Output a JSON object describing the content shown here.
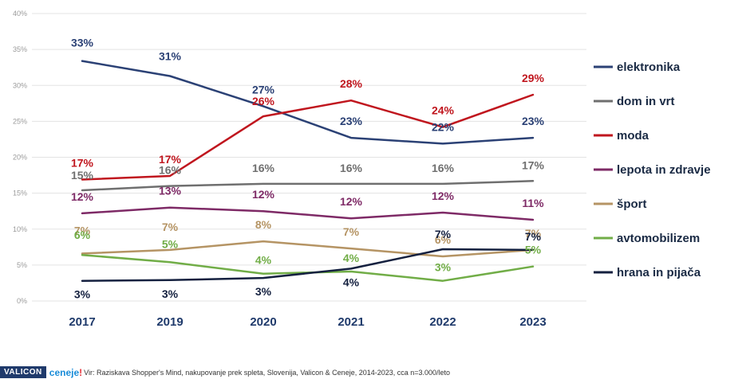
{
  "chart_data": {
    "type": "line",
    "categories": [
      "2017",
      "2019",
      "2020",
      "2021",
      "2022",
      "2023"
    ],
    "ylim": [
      0,
      40
    ],
    "yticks": [
      "0%",
      "5%",
      "10%",
      "15%",
      "20%",
      "25%",
      "30%",
      "35%",
      "40%"
    ],
    "series": [
      {
        "key": "elektronika",
        "name": "elektronika",
        "color": "#2b4175",
        "values": [
          33.4,
          31.3,
          27.1,
          22.7,
          21.9,
          22.7
        ],
        "labels": [
          "33%",
          "31%",
          "27%",
          "23%",
          "22%",
          "23%"
        ]
      },
      {
        "key": "dom",
        "name": "dom in vrt",
        "color": "#6f6f6f",
        "values": [
          15.4,
          16.0,
          16.3,
          16.3,
          16.3,
          16.7
        ],
        "labels": [
          "15%",
          "16%",
          "16%",
          "16%",
          "16%",
          "17%"
        ]
      },
      {
        "key": "moda",
        "name": "moda",
        "color": "#c0161e",
        "values": [
          16.9,
          17.4,
          25.7,
          27.9,
          24.2,
          28.7
        ],
        "labels": [
          "17%",
          "17%",
          "26%",
          "28%",
          "24%",
          "29%"
        ]
      },
      {
        "key": "lepota",
        "name": "lepota in zdravje",
        "color": "#7e2a66",
        "values": [
          12.2,
          13.0,
          12.5,
          11.5,
          12.3,
          11.3
        ],
        "labels": [
          "12%",
          "13%",
          "12%",
          "12%",
          "12%",
          "11%"
        ]
      },
      {
        "key": "sport",
        "name": "šport",
        "color": "#b59464",
        "values": [
          6.6,
          7.1,
          8.3,
          7.3,
          6.2,
          7.1
        ],
        "labels": [
          "7%",
          "7%",
          "8%",
          "7%",
          "6%",
          "7%"
        ]
      },
      {
        "key": "avto",
        "name": "avtomobilizem",
        "color": "#71ad47",
        "values": [
          6.4,
          5.4,
          3.8,
          4.1,
          2.8,
          4.8
        ],
        "labels": [
          "6%",
          "5%",
          "4%",
          "4%",
          "3%",
          "5%"
        ]
      },
      {
        "key": "hrana",
        "name": "hrana in pijača",
        "color": "#14203f",
        "values": [
          2.8,
          2.9,
          3.2,
          4.5,
          7.2,
          7.1
        ],
        "labels": [
          "3%",
          "3%",
          "3%",
          "4%",
          "7%",
          "7%"
        ]
      }
    ]
  },
  "footer": {
    "brand1": "VALICON",
    "brand2": "ceneje",
    "brand2_mark": "!",
    "source": "Vir: Raziskava Shopper's Mind, nakupovanje prek spleta, Slovenija, Valicon & Ceneje, 2014-2023, cca n=3.000/leto"
  }
}
